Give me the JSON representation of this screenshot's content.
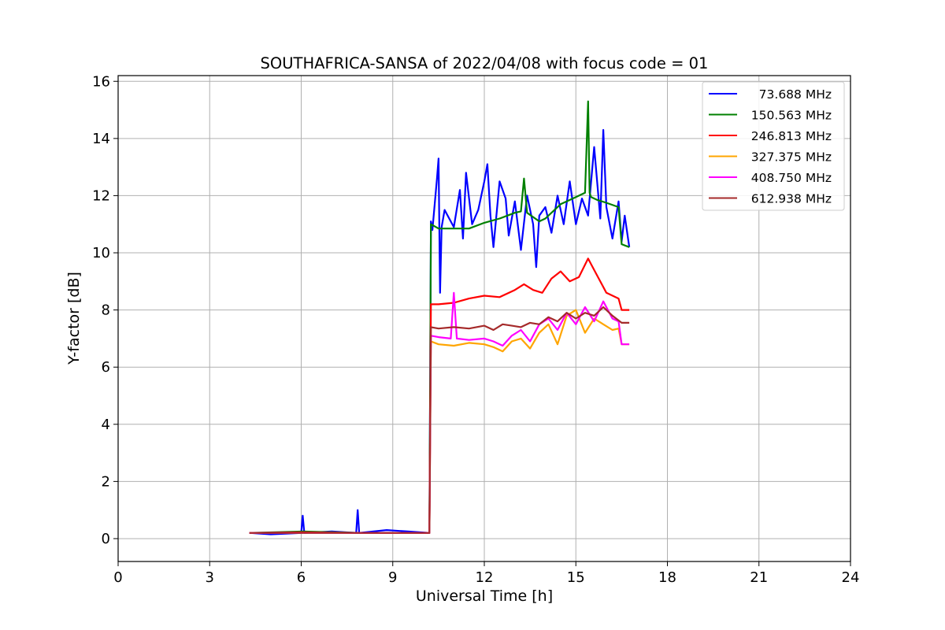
{
  "chart_data": {
    "type": "line",
    "title": "SOUTHAFRICA-SANSA of 2022/04/08 with focus code = 01",
    "xlabel": "Universal Time [h]",
    "ylabel": "Y-factor [dB]",
    "xlim": [
      0,
      24
    ],
    "ylim": [
      -0.8,
      16.2
    ],
    "xticks": [
      0,
      3,
      6,
      9,
      12,
      15,
      18,
      21,
      24
    ],
    "yticks": [
      0,
      2,
      4,
      6,
      8,
      10,
      12,
      14,
      16
    ],
    "grid": true,
    "legend_position": "top-right",
    "series": [
      {
        "name": "73.688 MHz",
        "color": "#0000ff",
        "x": [
          4.3,
          5.0,
          6.0,
          6.05,
          6.1,
          7.0,
          7.8,
          7.85,
          7.9,
          8.8,
          9.5,
          10.2,
          10.25,
          10.3,
          10.45,
          10.5,
          10.55,
          10.6,
          10.7,
          11.0,
          11.2,
          11.3,
          11.4,
          11.6,
          11.8,
          12.0,
          12.1,
          12.2,
          12.3,
          12.5,
          12.7,
          12.8,
          13.0,
          13.2,
          13.4,
          13.6,
          13.7,
          13.8,
          14.0,
          14.2,
          14.4,
          14.6,
          14.8,
          15.0,
          15.2,
          15.4,
          15.6,
          15.8,
          15.9,
          16.0,
          16.2,
          16.4,
          16.5,
          16.6,
          16.75
        ],
        "y": [
          0.2,
          0.15,
          0.2,
          0.8,
          0.2,
          0.25,
          0.2,
          1.0,
          0.2,
          0.3,
          0.25,
          0.2,
          11.1,
          10.8,
          12.6,
          13.3,
          8.6,
          10.9,
          11.5,
          10.9,
          12.2,
          10.5,
          12.8,
          11.0,
          11.5,
          12.5,
          13.1,
          11.3,
          10.2,
          12.5,
          11.9,
          10.6,
          11.8,
          10.1,
          12.0,
          11.0,
          9.5,
          11.3,
          11.6,
          10.7,
          12.0,
          11.0,
          12.5,
          11.0,
          11.9,
          11.3,
          13.7,
          11.2,
          14.3,
          11.6,
          10.5,
          11.8,
          10.4,
          11.3,
          10.2
        ]
      },
      {
        "name": "150.563 MHz",
        "color": "#008000",
        "x": [
          4.3,
          6.0,
          8.0,
          10.2,
          10.25,
          10.5,
          11.0,
          11.5,
          12.0,
          12.5,
          13.0,
          13.2,
          13.3,
          13.4,
          13.8,
          14.0,
          14.5,
          15.0,
          15.3,
          15.4,
          15.45,
          15.5,
          15.7,
          16.0,
          16.4,
          16.5,
          16.75
        ],
        "y": [
          0.2,
          0.25,
          0.2,
          0.2,
          11.0,
          10.85,
          10.85,
          10.85,
          11.05,
          11.2,
          11.4,
          11.45,
          12.6,
          11.4,
          11.1,
          11.2,
          11.7,
          11.95,
          12.1,
          15.3,
          12.1,
          11.95,
          11.85,
          11.75,
          11.6,
          10.3,
          10.2
        ]
      },
      {
        "name": "246.813 MHz",
        "color": "#ff0000",
        "x": [
          4.3,
          6.0,
          8.0,
          10.2,
          10.25,
          10.5,
          11.0,
          11.5,
          12.0,
          12.5,
          13.0,
          13.3,
          13.6,
          13.9,
          14.2,
          14.5,
          14.8,
          15.1,
          15.4,
          15.5,
          15.7,
          16.0,
          16.4,
          16.5,
          16.75
        ],
        "y": [
          0.2,
          0.22,
          0.2,
          0.2,
          8.2,
          8.2,
          8.25,
          8.4,
          8.5,
          8.45,
          8.7,
          8.9,
          8.7,
          8.6,
          9.1,
          9.35,
          9.0,
          9.15,
          9.8,
          9.6,
          9.2,
          8.6,
          8.4,
          8.0,
          8.0
        ]
      },
      {
        "name": "327.375 MHz",
        "color": "#ffa500",
        "x": [
          4.3,
          6.0,
          8.0,
          10.2,
          10.25,
          10.5,
          11.0,
          11.5,
          12.0,
          12.3,
          12.6,
          12.9,
          13.2,
          13.5,
          13.8,
          14.1,
          14.4,
          14.7,
          15.0,
          15.3,
          15.6,
          15.9,
          16.2,
          16.4,
          16.5,
          16.75
        ],
        "y": [
          0.2,
          0.2,
          0.2,
          0.2,
          6.9,
          6.8,
          6.75,
          6.85,
          6.8,
          6.7,
          6.55,
          6.9,
          7.0,
          6.65,
          7.2,
          7.5,
          6.8,
          7.8,
          8.0,
          7.2,
          7.7,
          7.5,
          7.3,
          7.35,
          6.8,
          6.8
        ]
      },
      {
        "name": "408.750 MHz",
        "color": "#ff00ff",
        "x": [
          4.3,
          6.0,
          8.0,
          10.2,
          10.25,
          10.5,
          10.9,
          11.0,
          11.1,
          11.5,
          12.0,
          12.3,
          12.6,
          12.9,
          13.2,
          13.5,
          13.8,
          14.1,
          14.4,
          14.7,
          15.0,
          15.3,
          15.6,
          15.9,
          16.2,
          16.4,
          16.5,
          16.75
        ],
        "y": [
          0.2,
          0.2,
          0.2,
          0.2,
          7.1,
          7.05,
          7.0,
          8.6,
          7.0,
          6.95,
          7.0,
          6.9,
          6.75,
          7.1,
          7.3,
          6.9,
          7.5,
          7.7,
          7.3,
          7.9,
          7.5,
          8.1,
          7.6,
          8.3,
          7.7,
          7.6,
          6.8,
          6.8
        ]
      },
      {
        "name": "612.938 MHz",
        "color": "#a52a2a",
        "x": [
          4.3,
          6.0,
          8.0,
          10.2,
          10.25,
          10.5,
          11.0,
          11.5,
          12.0,
          12.3,
          12.6,
          12.9,
          13.2,
          13.5,
          13.8,
          14.1,
          14.4,
          14.7,
          15.0,
          15.3,
          15.6,
          15.9,
          16.2,
          16.5,
          16.75
        ],
        "y": [
          0.2,
          0.2,
          0.2,
          0.2,
          7.4,
          7.35,
          7.4,
          7.35,
          7.45,
          7.3,
          7.5,
          7.45,
          7.4,
          7.55,
          7.5,
          7.75,
          7.6,
          7.9,
          7.7,
          7.9,
          7.8,
          8.1,
          7.8,
          7.55,
          7.55
        ]
      }
    ]
  }
}
